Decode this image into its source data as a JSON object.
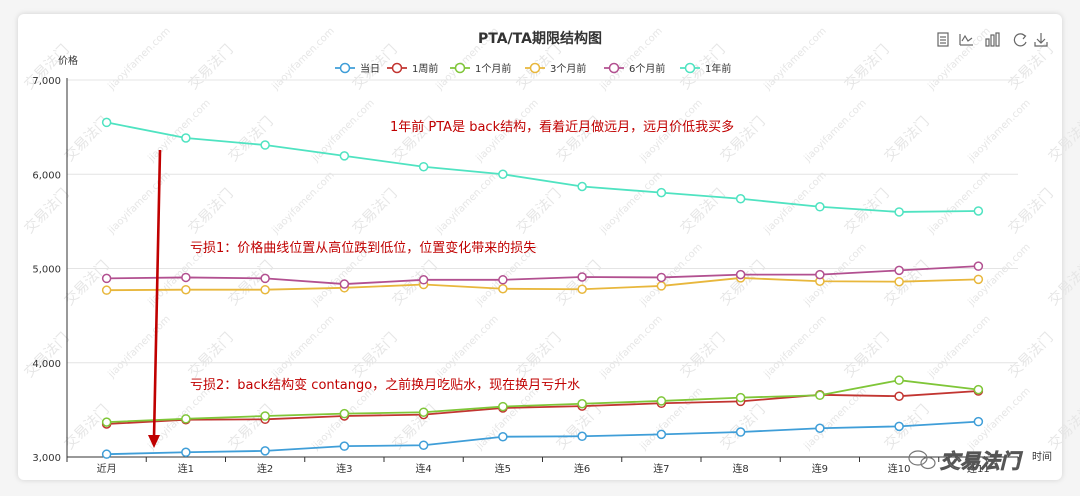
{
  "chart_data": {
    "type": "line",
    "title": "PTA/TA期限结构图",
    "ylabel": "价格",
    "xlabel": "时间",
    "ylim": [
      3000,
      7000
    ],
    "yticks": [
      3000,
      4000,
      5000,
      6000,
      7000
    ],
    "ytick_labels": [
      "3,000",
      "4,000",
      "5,000",
      "6,000",
      "7,000"
    ],
    "categories": [
      "近月",
      "连1",
      "连2",
      "连3",
      "连4",
      "连5",
      "连6",
      "连7",
      "连8",
      "连9",
      "连10",
      "连11"
    ],
    "legend_position": "top-center",
    "grid": true,
    "series": [
      {
        "name": "当日",
        "color": "#3f9ed8",
        "values": [
          3030,
          3050,
          3065,
          3115,
          3125,
          3215,
          3220,
          3240,
          3265,
          3305,
          3325,
          3375
        ]
      },
      {
        "name": "1周前",
        "color": "#c23531",
        "values": [
          3350,
          3395,
          3400,
          3435,
          3450,
          3520,
          3540,
          3570,
          3590,
          3660,
          3645,
          3700
        ]
      },
      {
        "name": "1个月前",
        "color": "#7fc638",
        "values": [
          3370,
          3405,
          3435,
          3460,
          3475,
          3535,
          3565,
          3595,
          3630,
          3655,
          3815,
          3715
        ]
      },
      {
        "name": "3个月前",
        "color": "#e8b73c",
        "values": [
          4770,
          4775,
          4775,
          4795,
          4830,
          4785,
          4780,
          4815,
          4900,
          4865,
          4860,
          4885
        ]
      },
      {
        "name": "6个月前",
        "color": "#b25090",
        "values": [
          4895,
          4905,
          4895,
          4835,
          4880,
          4880,
          4910,
          4905,
          4935,
          4935,
          4980,
          5025
        ]
      },
      {
        "name": "1年前",
        "color": "#4fe3c1",
        "values": [
          6550,
          6385,
          6310,
          6195,
          6080,
          6000,
          5870,
          5805,
          5740,
          5655,
          5600,
          5610
        ]
      }
    ],
    "annotations": [
      "1年前 PTA是 back结构，看着近月做远月，远月价低我买多",
      "亏损1：价格曲线位置从高位跌到低位，位置变化带来的损失",
      "亏损2：back结构变 contango，之前换月吃贴水，现在换月亏升水"
    ]
  },
  "toolbar": {
    "icons": [
      "data-view-icon",
      "line-switch-icon",
      "bar-switch-icon",
      "restore-icon",
      "download-icon"
    ]
  },
  "watermark": {
    "text_cn": "交易法门",
    "text_en": "jiaoyifamen.com"
  },
  "logo": {
    "text": "交易法门"
  }
}
